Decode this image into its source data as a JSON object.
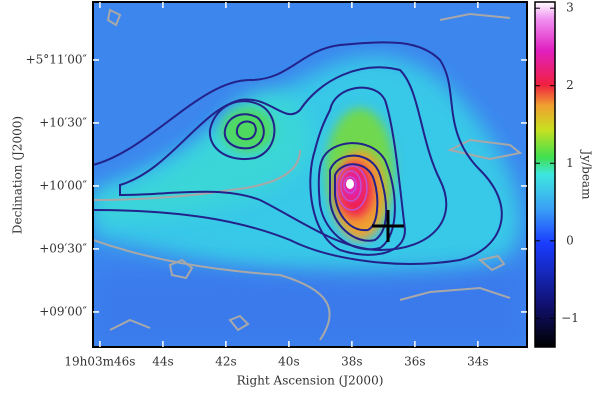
{
  "chart_data": {
    "type": "image",
    "xlabel": "Right Ascension (J2000)",
    "ylabel": "Declination (J2000)",
    "xlim": [
      46.22,
      32.44
    ],
    "xticks": [
      {
        "value": 46,
        "label": "19h03m46s"
      },
      {
        "value": 44,
        "label": "44s"
      },
      {
        "value": 42,
        "label": "42s"
      },
      {
        "value": 40,
        "label": "40s"
      },
      {
        "value": 38,
        "label": "38s"
      },
      {
        "value": 36,
        "label": "36s"
      },
      {
        "value": 34,
        "label": "34s"
      }
    ],
    "ylim": [
      523.3,
      687.6
    ],
    "yticks": [
      {
        "value": 660,
        "label": "+5°11′00″"
      },
      {
        "value": 630,
        "label": "+10′30″"
      },
      {
        "value": 600,
        "label": "+10′00″"
      },
      {
        "value": 570,
        "label": "+09′30″"
      },
      {
        "value": 540,
        "label": "+09′00″"
      }
    ],
    "colorbar": {
      "label": "Jy/beam",
      "lim": [
        -1.37,
        3.08
      ],
      "ticks": [
        3,
        2,
        1,
        0,
        {
          "value": -1,
          "label": "−1"
        }
      ]
    }
  }
}
